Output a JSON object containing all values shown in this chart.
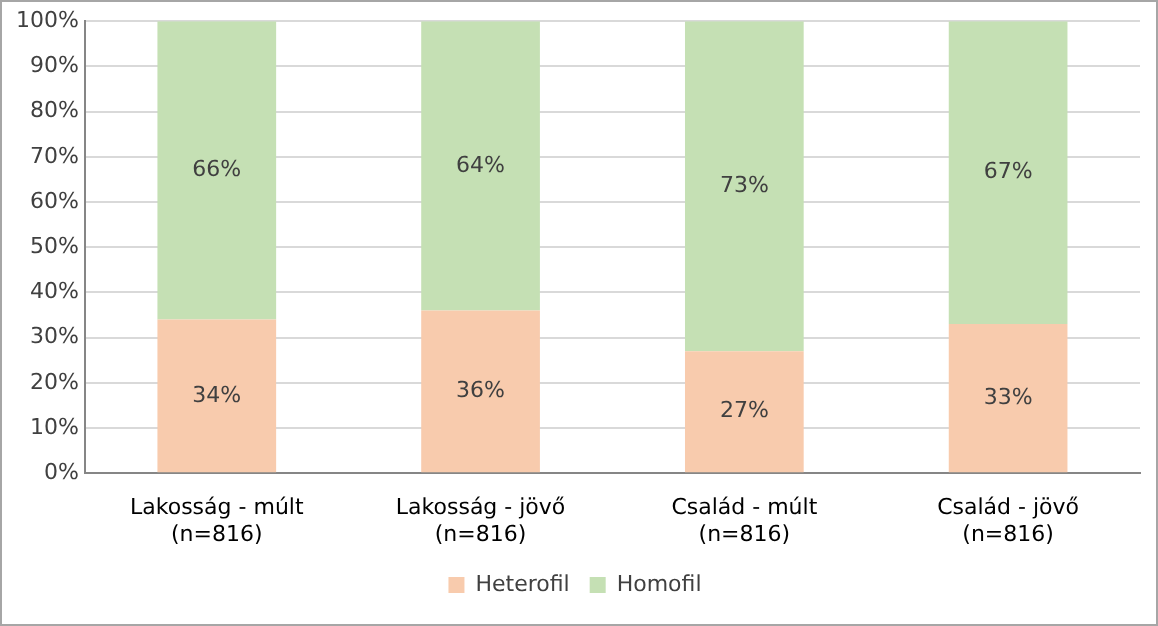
{
  "chart_data": {
    "type": "bar",
    "stacked": true,
    "categories": [
      "Lakosság - múlt (n=816)",
      "Lakosság - jövő (n=816)",
      "Család - múlt (n=816)",
      "Család - jövő (n=816)"
    ],
    "series": [
      {
        "name": "Heterofil",
        "color": "#f8cbad",
        "values": [
          34,
          36,
          27,
          33
        ],
        "value_labels": [
          "34%",
          "36%",
          "27%",
          "33%"
        ]
      },
      {
        "name": "Homofil",
        "color": "#c5e0b4",
        "values": [
          66,
          64,
          73,
          67
        ],
        "value_labels": [
          "66%",
          "64%",
          "73%",
          "67%"
        ]
      }
    ],
    "ylim": [
      0,
      100
    ],
    "yticks": [
      {
        "value": 0,
        "label": "0%"
      },
      {
        "value": 10,
        "label": "10%"
      },
      {
        "value": 20,
        "label": "20%"
      },
      {
        "value": 30,
        "label": "30%"
      },
      {
        "value": 40,
        "label": "40%"
      },
      {
        "value": 50,
        "label": "50%"
      },
      {
        "value": 60,
        "label": "60%"
      },
      {
        "value": 70,
        "label": "70%"
      },
      {
        "value": 80,
        "label": "80%"
      },
      {
        "value": 90,
        "label": "90%"
      },
      {
        "value": 100,
        "label": "100%"
      }
    ],
    "grid": "y",
    "legend": "bottom"
  }
}
